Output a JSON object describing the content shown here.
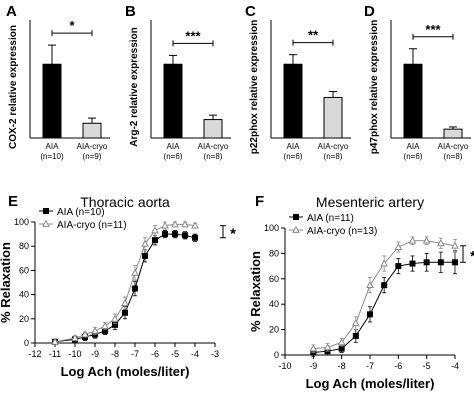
{
  "colors": {
    "ink": "#000000",
    "bar_aia": "#000000",
    "bar_cryo": "#d9d9d9",
    "cryo_line": "#8a8a8a"
  },
  "chart_data": [
    {
      "panel": "A",
      "type": "bar",
      "ylabel": "COX-2 relative expression",
      "categories": [
        "AIA",
        "AIA-cryo"
      ],
      "category_n": [
        "(n=10)",
        "(n=9)"
      ],
      "values": [
        1.0,
        0.2
      ],
      "errors": [
        0.26,
        0.07
      ],
      "ylim": [
        0,
        1.6
      ],
      "significance": "*"
    },
    {
      "panel": "B",
      "type": "bar",
      "ylabel": "Arg-2 relative expression",
      "categories": [
        "AIA",
        "AIA-cryo"
      ],
      "category_n": [
        "(n=6)",
        "(n=8)"
      ],
      "values": [
        1.0,
        0.25
      ],
      "errors": [
        0.12,
        0.06
      ],
      "ylim": [
        0,
        1.6
      ],
      "significance": "***"
    },
    {
      "panel": "C",
      "type": "bar",
      "ylabel": "p22phox relative expression",
      "categories": [
        "AIA",
        "AIA-cryo"
      ],
      "category_n": [
        "(n=6)",
        "(n=8)"
      ],
      "values": [
        1.0,
        0.55
      ],
      "errors": [
        0.13,
        0.08
      ],
      "ylim": [
        0,
        1.6
      ],
      "significance": "**"
    },
    {
      "panel": "D",
      "type": "bar",
      "ylabel": "p47phox relative expression",
      "categories": [
        "AIA",
        "AIA-cryo"
      ],
      "category_n": [
        "(n=6)",
        "(n=8)"
      ],
      "values": [
        1.0,
        0.12
      ],
      "errors": [
        0.21,
        0.03
      ],
      "ylim": [
        0,
        1.6
      ],
      "significance": "***"
    },
    {
      "panel": "E",
      "type": "line",
      "title": "Thoracic aorta",
      "xlabel": "Log Ach (moles/liter)",
      "ylabel": "% Relaxation",
      "xlim": [
        -12,
        -3
      ],
      "ylim": [
        0,
        100
      ],
      "xticks": [
        -12,
        -11,
        -10,
        -9,
        -8,
        -7,
        -6,
        -5,
        -4,
        -3
      ],
      "yticks": [
        0,
        20,
        40,
        60,
        80,
        100
      ],
      "significance": "*",
      "series": [
        {
          "name": "AIA (n=10)",
          "marker": "square",
          "x": [
            -11,
            -10,
            -9.5,
            -9,
            -8.5,
            -8,
            -7.5,
            -7,
            -6.5,
            -6,
            -5.5,
            -5,
            -4.5,
            -4
          ],
          "y": [
            1,
            3,
            5,
            7,
            10,
            15,
            25,
            45,
            72,
            85,
            90,
            90,
            89,
            87
          ],
          "err": [
            1,
            2,
            3,
            3,
            3,
            4,
            5,
            6,
            5,
            4,
            3,
            3,
            3,
            3
          ]
        },
        {
          "name": "AIA-cryo (n=11)",
          "marker": "triangle",
          "x": [
            -11,
            -10,
            -9.5,
            -9,
            -8.5,
            -8,
            -7.5,
            -7,
            -6.5,
            -6,
            -5.5,
            -5,
            -4.5,
            -4
          ],
          "y": [
            1,
            4,
            7,
            10,
            14,
            20,
            33,
            58,
            82,
            93,
            97,
            98,
            98,
            97
          ],
          "err": [
            1,
            2,
            2,
            3,
            3,
            4,
            5,
            6,
            5,
            4,
            3,
            2,
            2,
            2
          ]
        }
      ]
    },
    {
      "panel": "F",
      "type": "line",
      "title": "Mesenteric artery",
      "xlabel": "Log Ach (moles/liter)",
      "ylabel": "% Relaxation",
      "xlim": [
        -10,
        -4
      ],
      "ylim": [
        0,
        100
      ],
      "xticks": [
        -10,
        -9,
        -8,
        -7,
        -6,
        -5,
        -4
      ],
      "yticks": [
        0,
        20,
        40,
        60,
        80,
        100
      ],
      "significance": "*",
      "series": [
        {
          "name": "AIA (n=11)",
          "marker": "square",
          "x": [
            -9,
            -8.5,
            -8,
            -7.5,
            -7,
            -6.5,
            -6,
            -5.5,
            -5,
            -4.5,
            -4
          ],
          "y": [
            2,
            3,
            5,
            15,
            32,
            55,
            70,
            72,
            73,
            73,
            73
          ],
          "err": [
            3,
            3,
            3,
            5,
            6,
            6,
            6,
            6,
            7,
            8,
            9
          ]
        },
        {
          "name": "AIA-cryo (n=13)",
          "marker": "triangle",
          "x": [
            -9,
            -8.5,
            -8,
            -7.5,
            -7,
            -6.5,
            -6,
            -5.5,
            -5,
            -4.5,
            -4
          ],
          "y": [
            5,
            6,
            10,
            25,
            55,
            72,
            85,
            90,
            90,
            88,
            86
          ],
          "err": [
            3,
            3,
            3,
            5,
            6,
            6,
            4,
            3,
            3,
            4,
            5
          ]
        }
      ]
    }
  ]
}
